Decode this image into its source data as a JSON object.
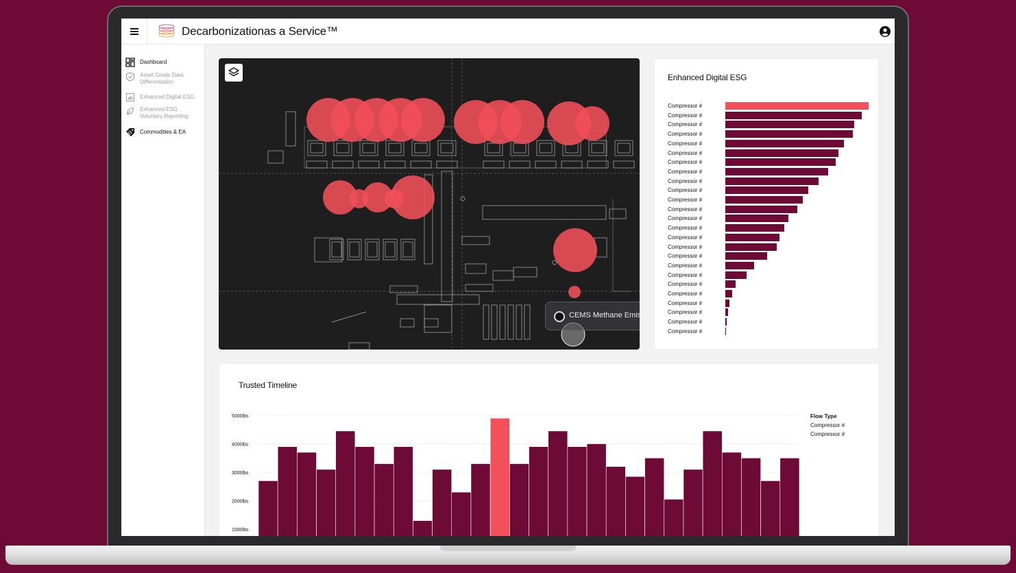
{
  "app": {
    "title": "Decarbonizationas a Service™"
  },
  "sidebar": {
    "items": [
      {
        "label": "Dashboard",
        "icon": "dashboard-grid-icon",
        "active": true
      },
      {
        "label": "Asset Grade Data Differentiation",
        "icon": "shield-check-icon",
        "active": false
      },
      {
        "label": "Enhanced Digital ESG",
        "icon": "bar-chart-icon",
        "active": false
      },
      {
        "label": "Enhanced ESG Voluntary Reporting",
        "icon": "leaf-icon",
        "active": false
      },
      {
        "label": "Commodities & EA",
        "icon": "tag-icon",
        "active": true
      }
    ]
  },
  "map": {
    "layers_icon": "layers-icon",
    "cems_label": "CEMS Methane Emis",
    "heat_color": "#f2505a"
  },
  "esg": {
    "title": "Enhanced Digital ESG",
    "rows": [
      {
        "label": "Compressor #",
        "value": 1.0,
        "highlight": true
      },
      {
        "label": "Compressor #",
        "value": 0.95
      },
      {
        "label": "Compressor #",
        "value": 0.9
      },
      {
        "label": "Compressor #",
        "value": 0.89
      },
      {
        "label": "Compressor #",
        "value": 0.83
      },
      {
        "label": "Compressor #",
        "value": 0.79
      },
      {
        "label": "Compressor #",
        "value": 0.77
      },
      {
        "label": "Compressor #",
        "value": 0.72
      },
      {
        "label": "Compressor #",
        "value": 0.65
      },
      {
        "label": "Compressor #",
        "value": 0.58
      },
      {
        "label": "Compressor #",
        "value": 0.54
      },
      {
        "label": "Compressor #",
        "value": 0.5
      },
      {
        "label": "Compressor #",
        "value": 0.44
      },
      {
        "label": "Compressor #",
        "value": 0.41
      },
      {
        "label": "Compressor #",
        "value": 0.38
      },
      {
        "label": "Compressor #",
        "value": 0.36
      },
      {
        "label": "Compressor #",
        "value": 0.29
      },
      {
        "label": "Compressor #",
        "value": 0.2
      },
      {
        "label": "Compressor #",
        "value": 0.15
      },
      {
        "label": "Compressor #",
        "value": 0.07
      },
      {
        "label": "Compressor #",
        "value": 0.05
      },
      {
        "label": "Compressor #",
        "value": 0.03
      },
      {
        "label": "Compressor #",
        "value": 0.02
      },
      {
        "label": "Compressor #",
        "value": 0.01
      },
      {
        "label": "Compressor #",
        "value": 0.005
      }
    ],
    "bar_color": "#6e0a36",
    "highlight_color": "#f2505a"
  },
  "timeline": {
    "title": "Trusted Timeline",
    "legend_title": "Flow Type",
    "legend_items": [
      "Compressor #",
      "Compressor #"
    ]
  },
  "chart_data": {
    "type": "bar",
    "title": "Trusted Timeline",
    "y_ticks": [
      "5000lbs",
      "4000lbs",
      "3000lbs",
      "2000lbs",
      "1000lbs"
    ],
    "y_tick_values": [
      5000,
      4000,
      3000,
      2000,
      1000
    ],
    "ylim": [
      0,
      5000
    ],
    "values": [
      2700,
      3900,
      3700,
      3100,
      4450,
      3900,
      3300,
      3900,
      1300,
      3100,
      2300,
      3300,
      4900,
      3300,
      3900,
      4450,
      3900,
      4000,
      3200,
      2850,
      3500,
      2050,
      3100,
      4450,
      3700,
      3500,
      2700,
      3500
    ],
    "highlight_index": 12,
    "bar_color": "#6e0a36",
    "highlight_color": "#f2505a",
    "grid": true,
    "legend_placement": "right"
  }
}
